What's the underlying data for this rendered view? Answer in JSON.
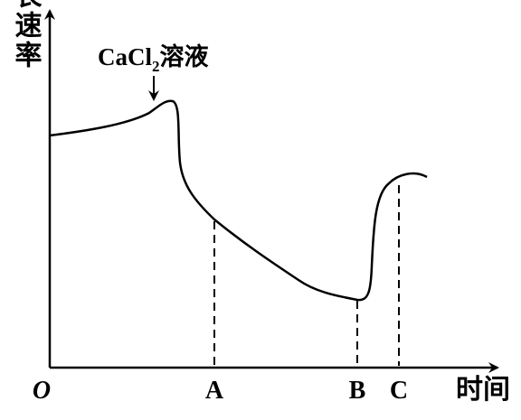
{
  "y_axis_label": "生长速率",
  "x_axis_label": "时间",
  "origin": "O",
  "annotation": {
    "text": "CaCl",
    "subscript": "2",
    "suffix": "溶液"
  },
  "points": [
    "A",
    "B",
    "C"
  ]
}
